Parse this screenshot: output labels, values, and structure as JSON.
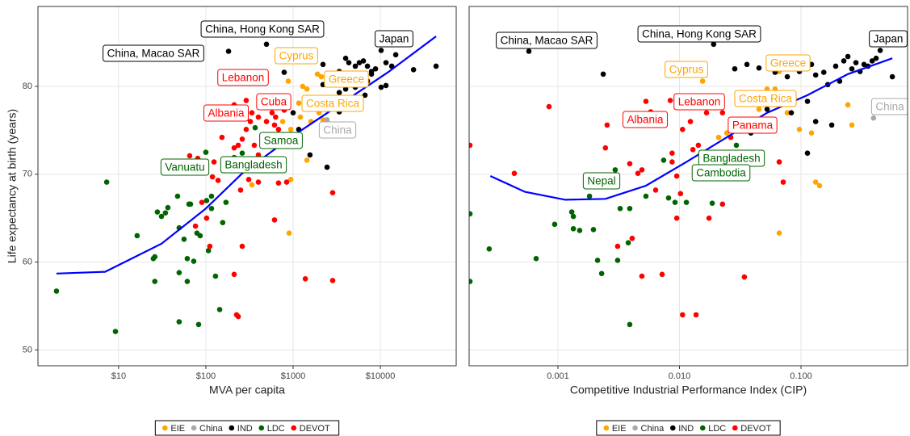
{
  "chart_data": [
    {
      "type": "scatter",
      "xlabel": "MVA per capita",
      "ylabel": "Life expectancy at birth (years)",
      "xscale": "log",
      "xlim": [
        1.19,
        74000
      ],
      "ylim": [
        48.2,
        89.1
      ],
      "xticks": [
        {
          "value": 10,
          "label": "$10"
        },
        {
          "value": 100,
          "label": "$100"
        },
        {
          "value": 1000,
          "label": "$1000"
        },
        {
          "value": 10000,
          "label": "$10000"
        }
      ],
      "yticks": [
        50,
        60,
        70,
        80
      ],
      "grid": true,
      "legend": "bottom",
      "series": [
        {
          "name": "EIE",
          "color": "#FFA500",
          "x": [
            880,
            1290,
            1440,
            1900,
            2110,
            2610,
            1160,
            1380,
            760,
            940,
            1210,
            680,
            900,
            1440,
            337,
            900,
            940,
            2200,
            1600,
            1980
          ],
          "values": [
            80.6,
            80.0,
            79.7,
            81.4,
            81.1,
            80.8,
            78.1,
            78.3,
            76.0,
            75.1,
            76.5,
            73.7,
            73.3,
            71.6,
            68.8,
            63.3,
            69.4,
            76.2,
            76.0,
            77.0
          ]
        },
        {
          "name": "China",
          "color": "#A9A9A9",
          "x": [
            2450
          ],
          "values": [
            76.2
          ]
        },
        {
          "name": "IND",
          "color": "#000000",
          "x": [
            182,
            495,
            10200,
            790,
            2200,
            3380,
            4000,
            4350,
            5160,
            5740,
            6390,
            7110,
            7910,
            8800,
            11600,
            13500,
            15000,
            24000,
            43500,
            2200,
            3380,
            4000,
            5160,
            7110,
            10200,
            11600,
            7910,
            1440,
            1560,
            2450,
            1000,
            1160,
            6670,
            3380
          ],
          "values": [
            84.0,
            84.8,
            84.1,
            81.6,
            82.5,
            81.7,
            83.2,
            82.7,
            82.3,
            82.7,
            82.9,
            82.3,
            81.4,
            82.0,
            82.7,
            82.3,
            83.6,
            81.9,
            82.3,
            80.2,
            79.3,
            79.7,
            79.9,
            80.6,
            79.9,
            80.1,
            81.7,
            77.9,
            72.2,
            70.8,
            77.0,
            75.1,
            79.0,
            77.1
          ]
        },
        {
          "name": "LDC",
          "color": "#006400",
          "x": [
            1.94,
            7.3,
            9.2,
            16.3,
            26,
            27.8,
            31,
            34.4,
            25,
            26,
            47.4,
            49.4,
            49.4,
            56.2,
            61.2,
            61.2,
            66.7,
            72.6,
            79,
            64,
            86,
            82.6,
            49.4,
            100,
            102,
            116,
            107,
            129,
            144,
            156,
            170,
            116,
            190,
            211,
            261,
            367,
            495,
            100,
            36.7
          ],
          "values": [
            56.7,
            69.1,
            52.1,
            63.0,
            60.6,
            65.7,
            65.2,
            65.6,
            60.4,
            57.8,
            67.5,
            63.9,
            58.8,
            62.6,
            60.4,
            57.8,
            66.6,
            60.1,
            63.3,
            66.6,
            63.0,
            52.9,
            53.2,
            72.5,
            67.0,
            67.5,
            61.3,
            58.4,
            54.6,
            64.5,
            66.8,
            66.1,
            71.4,
            71.9,
            72.4,
            75.3,
            74.2,
            70.5,
            66.2
          ]
        },
        {
          "name": "DEVOT",
          "color": "#FF0000",
          "x": [
            65.3,
            72.6,
            80.8,
            90,
            119,
            124,
            153,
            211,
            235,
            261,
            290,
            323,
            290,
            337,
            400,
            495,
            612,
            680,
            574,
            359,
            400,
            310,
            250,
            261,
            211,
            225,
            235,
            90,
            102,
            76,
            111,
            612,
            680,
            843,
            1380,
            2840,
            2840,
            138,
            400,
            790,
            612,
            211,
            630
          ],
          "values": [
            72.1,
            70.5,
            71.8,
            71.4,
            69.7,
            71.4,
            74.2,
            73.0,
            73.3,
            74.0,
            75.1,
            76.0,
            78.4,
            77.0,
            76.5,
            76.0,
            75.6,
            75.1,
            77.0,
            73.3,
            69.1,
            69.4,
            68.2,
            61.8,
            58.6,
            54.0,
            53.8,
            66.8,
            65.0,
            64.1,
            61.8,
            64.8,
            69.0,
            69.1,
            58.1,
            67.9,
            57.9,
            69.3,
            72.2,
            77.3,
            78.3,
            77.9,
            76.5
          ]
        }
      ],
      "trend": {
        "color": "#0000FF",
        "x": [
          1.94,
          7.0,
          31,
          100,
          261,
          940,
          3380,
          12200,
          43500
        ],
        "values": [
          58.7,
          58.9,
          62.1,
          66.1,
          70.1,
          74.2,
          77.9,
          81.6,
          85.7
        ]
      },
      "annotations": [
        {
          "text": "China, Macao SAR",
          "color": "#000000"
        },
        {
          "text": "China, Hong Kong SAR",
          "color": "#000000"
        },
        {
          "text": "Japan",
          "color": "#000000"
        },
        {
          "text": "Cyprus",
          "color": "#FFA500"
        },
        {
          "text": "Lebanon",
          "color": "#FF0000"
        },
        {
          "text": "Greece",
          "color": "#FFA500"
        },
        {
          "text": "Albania",
          "color": "#FF0000"
        },
        {
          "text": "Cuba",
          "color": "#FF0000"
        },
        {
          "text": "Costa Rica",
          "color": "#FFA500"
        },
        {
          "text": "China",
          "color": "#A9A9A9"
        },
        {
          "text": "Samoa",
          "color": "#006400"
        },
        {
          "text": "Vanuatu",
          "color": "#006400"
        },
        {
          "text": "Bangladesh",
          "color": "#006400"
        }
      ]
    },
    {
      "type": "scatter",
      "xlabel": "Competitive Industrial Performance Index (CIP)",
      "sharey": true,
      "xscale": "log",
      "xlim": [
        0.000186,
        0.753
      ],
      "ylim": [
        48.2,
        89.1
      ],
      "xticks": [
        0.001,
        {
          "value": 0.01,
          "label": "0.010"
        },
        {
          "value": 0.1,
          "label": "0.100"
        }
      ],
      "yticks": [
        50,
        60,
        70,
        80
      ],
      "grid": true,
      "legend": "bottom",
      "series": [
        {
          "name": "EIE",
          "color": "#FFA500",
          "x": [
            0.0155,
            0.0387,
            0.0451,
            0.0568,
            0.0612,
            0.0662,
            0.0771,
            0.097,
            0.122,
            0.132,
            0.142,
            0.0662,
            0.018,
            0.021,
            0.0245,
            0.243,
            0.262,
            0.0526
          ],
          "values": [
            80.6,
            78.1,
            77.4,
            78.3,
            79.7,
            81.7,
            77.0,
            75.1,
            74.7,
            69.1,
            68.7,
            63.3,
            71.6,
            74.2,
            74.7,
            77.9,
            75.6,
            79.7
          ]
        },
        {
          "name": "China",
          "color": "#A9A9A9",
          "x": [
            0.395
          ],
          "values": [
            76.4
          ]
        },
        {
          "name": "IND",
          "color": "#000000",
          "x": [
            0.000577,
            0.0191,
            0.448,
            0.00236,
            0.0285,
            0.0359,
            0.0451,
            0.0612,
            0.0771,
            0.097,
            0.122,
            0.132,
            0.154,
            0.193,
            0.225,
            0.243,
            0.262,
            0.283,
            0.306,
            0.33,
            0.356,
            0.385,
            0.415,
            0.208,
            0.113,
            0.0832,
            0.0526,
            0.132,
            0.0387,
            0.113,
            0.179,
            0.564,
            0.166
          ],
          "values": [
            84.0,
            84.8,
            84.1,
            81.4,
            82.0,
            82.5,
            82.1,
            81.6,
            81.1,
            81.7,
            82.5,
            81.3,
            81.6,
            82.3,
            82.9,
            83.4,
            82.0,
            82.7,
            81.7,
            82.5,
            82.3,
            82.9,
            83.2,
            80.6,
            78.3,
            77.0,
            77.4,
            76.0,
            74.7,
            72.4,
            75.6,
            81.1,
            80.2
          ]
        },
        {
          "name": "LDC",
          "color": "#006400",
          "x": [
            0.000189,
            0.000189,
            0.000272,
            0.000662,
            0.00094,
            0.0013,
            0.00134,
            0.00134,
            0.00151,
            0.00182,
            0.00196,
            0.00212,
            0.00229,
            0.00296,
            0.0031,
            0.00325,
            0.00379,
            0.0039,
            0.0039,
            0.0053,
            0.00741,
            0.00813,
            0.0092,
            0.0114,
            0.0155,
            0.0186,
            0.021,
            0.0226,
            0.0264,
            0.018,
            0.0294
          ],
          "values": [
            57.8,
            65.5,
            61.5,
            60.4,
            64.3,
            65.7,
            65.2,
            63.8,
            63.6,
            67.5,
            63.7,
            60.2,
            58.7,
            70.5,
            60.2,
            66.1,
            62.2,
            66.1,
            52.9,
            67.5,
            71.6,
            67.3,
            66.8,
            66.8,
            71.9,
            66.7,
            69.6,
            71.4,
            70.3,
            70.3,
            73.3
          ]
        },
        {
          "name": "DEVOT",
          "color": "#FF0000",
          "x": [
            0.000189,
            0.000438,
            0.000845,
            0.00254,
            0.00246,
            0.0039,
            0.00455,
            0.00491,
            0.00637,
            0.0087,
            0.0087,
            0.0095,
            0.0102,
            0.0095,
            0.0137,
            0.016,
            0.0143,
            0.0129,
            0.0106,
            0.0123,
            0.0167,
            0.018,
            0.0226,
            0.0264,
            0.0285,
            0.0322,
            0.0084,
            0.0058,
            0.0053,
            0.0031,
            0.00408,
            0.00491,
            0.0072,
            0.0106,
            0.0137,
            0.0175,
            0.0226,
            0.0342,
            0.0714,
            0.0662,
            0.042
          ],
          "values": [
            73.3,
            70.1,
            77.7,
            75.6,
            73.0,
            71.2,
            70.1,
            70.5,
            68.2,
            72.4,
            71.4,
            69.8,
            67.8,
            65.0,
            69.6,
            71.7,
            73.3,
            72.8,
            75.1,
            76.0,
            77.0,
            77.9,
            77.0,
            74.2,
            75.1,
            78.8,
            78.4,
            77.1,
            78.3,
            61.8,
            62.7,
            58.4,
            58.6,
            54.0,
            54.0,
            65.0,
            66.6,
            58.3,
            69.1,
            71.4,
            78.1
          ]
        }
      ],
      "trend": {
        "color": "#0000FF",
        "x": [
          0.000278,
          0.000535,
          0.00115,
          0.00246,
          0.0053,
          0.0114,
          0.0245,
          0.0526,
          0.113,
          0.243,
          0.564
        ],
        "values": [
          69.8,
          68.0,
          67.1,
          67.2,
          68.7,
          71.4,
          74.2,
          77.0,
          79.0,
          81.4,
          83.2
        ]
      },
      "annotations": [
        {
          "text": "China, Macao SAR",
          "color": "#000000"
        },
        {
          "text": "China, Hong Kong SAR",
          "color": "#000000"
        },
        {
          "text": "Japan",
          "color": "#000000"
        },
        {
          "text": "Cyprus",
          "color": "#FFA500"
        },
        {
          "text": "Greece",
          "color": "#FFA500"
        },
        {
          "text": "Lebanon",
          "color": "#FF0000"
        },
        {
          "text": "Costa Rica",
          "color": "#FFA500"
        },
        {
          "text": "China",
          "color": "#A9A9A9"
        },
        {
          "text": "Albania",
          "color": "#FF0000"
        },
        {
          "text": "Panama",
          "color": "#FF0000"
        },
        {
          "text": "Bangladesh",
          "color": "#006400"
        },
        {
          "text": "Cambodia",
          "color": "#006400"
        },
        {
          "text": "Nepal",
          "color": "#006400"
        }
      ]
    }
  ]
}
